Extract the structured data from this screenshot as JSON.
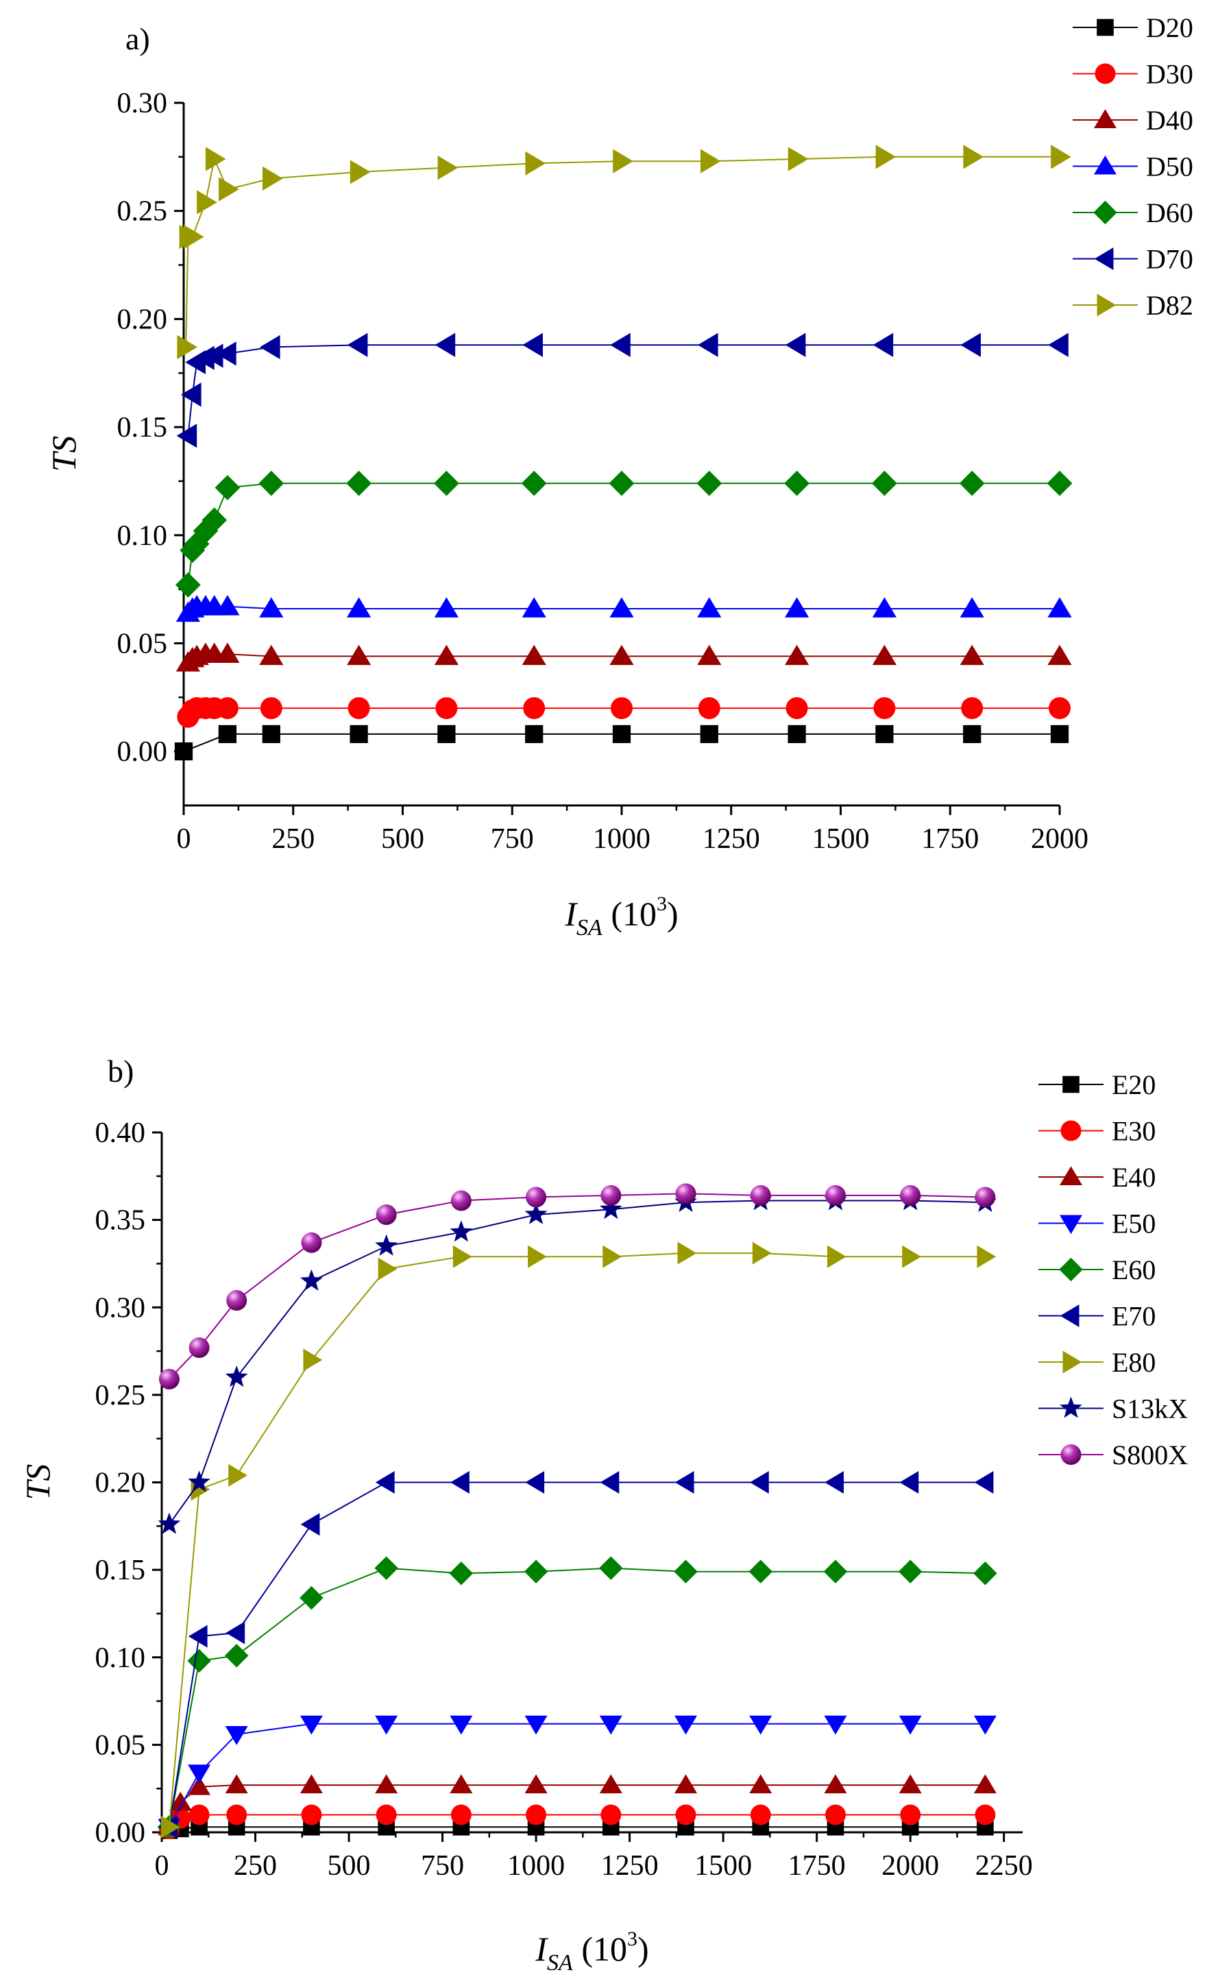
{
  "chart_data": [
    {
      "id": "panel-a",
      "type": "line",
      "panel_label": "a)",
      "xlabel_main": "I",
      "xlabel_sub": "SA",
      "xlabel_unit_open": " (10",
      "xlabel_unit_exp": "3",
      "xlabel_unit_close": ")",
      "ylabel": "TS",
      "xlim": [
        0,
        2000
      ],
      "ylim": [
        -0.025,
        0.3
      ],
      "xticks": [
        0,
        250,
        500,
        750,
        1000,
        1250,
        1500,
        1750,
        2000
      ],
      "yticks": [
        0.0,
        0.05,
        0.1,
        0.15,
        0.2,
        0.25,
        0.3
      ],
      "xtick_labels": [
        "0",
        "250",
        "500",
        "750",
        "1000",
        "1250",
        "1500",
        "1750",
        "2000"
      ],
      "ytick_labels": [
        "0.00",
        "0.05",
        "0.10",
        "0.15",
        "0.20",
        "0.25",
        "0.30"
      ],
      "legend_position": "top-right-outside",
      "series": [
        {
          "name": "D20",
          "color": "#000000",
          "marker": "square",
          "x": [
            0,
            100,
            200,
            400,
            600,
            800,
            1000,
            1200,
            1400,
            1600,
            1800,
            2000
          ],
          "y": [
            0.0,
            0.008,
            0.008,
            0.008,
            0.008,
            0.008,
            0.008,
            0.008,
            0.008,
            0.008,
            0.008,
            0.008
          ]
        },
        {
          "name": "D30",
          "color": "#ff0000",
          "marker": "circle",
          "x": [
            10,
            20,
            30,
            50,
            70,
            100,
            200,
            400,
            600,
            800,
            1000,
            1200,
            1400,
            1600,
            1800,
            2000
          ],
          "y": [
            0.016,
            0.019,
            0.02,
            0.02,
            0.02,
            0.02,
            0.02,
            0.02,
            0.02,
            0.02,
            0.02,
            0.02,
            0.02,
            0.02,
            0.02,
            0.02
          ]
        },
        {
          "name": "D40",
          "color": "#990000",
          "marker": "triangle-up",
          "x": [
            10,
            20,
            30,
            50,
            70,
            100,
            200,
            400,
            600,
            800,
            1000,
            1200,
            1400,
            1600,
            1800,
            2000
          ],
          "y": [
            0.041,
            0.043,
            0.044,
            0.045,
            0.045,
            0.045,
            0.044,
            0.044,
            0.044,
            0.044,
            0.044,
            0.044,
            0.044,
            0.044,
            0.044,
            0.044
          ]
        },
        {
          "name": "D50",
          "color": "#0000ff",
          "marker": "triangle-up",
          "x": [
            10,
            20,
            30,
            50,
            70,
            100,
            200,
            400,
            600,
            800,
            1000,
            1200,
            1400,
            1600,
            1800,
            2000
          ],
          "y": [
            0.064,
            0.066,
            0.067,
            0.067,
            0.067,
            0.067,
            0.066,
            0.066,
            0.066,
            0.066,
            0.066,
            0.066,
            0.066,
            0.066,
            0.066,
            0.066
          ]
        },
        {
          "name": "D60",
          "color": "#008000",
          "marker": "diamond",
          "x": [
            10,
            20,
            30,
            50,
            70,
            100,
            200,
            400,
            600,
            800,
            1000,
            1200,
            1400,
            1600,
            1800,
            2000
          ],
          "y": [
            0.077,
            0.093,
            0.096,
            0.102,
            0.107,
            0.122,
            0.124,
            0.124,
            0.124,
            0.124,
            0.124,
            0.124,
            0.124,
            0.124,
            0.124,
            0.124
          ]
        },
        {
          "name": "D70",
          "color": "#000099",
          "marker": "triangle-left",
          "x": [
            10,
            20,
            30,
            50,
            70,
            100,
            200,
            400,
            600,
            800,
            1000,
            1200,
            1400,
            1600,
            1800,
            2000
          ],
          "y": [
            0.146,
            0.165,
            0.18,
            0.182,
            0.183,
            0.184,
            0.187,
            0.188,
            0.188,
            0.188,
            0.188,
            0.188,
            0.188,
            0.188,
            0.188,
            0.188
          ]
        },
        {
          "name": "D82",
          "color": "#999900",
          "marker": "triangle-right",
          "x": [
            5,
            10,
            20,
            50,
            70,
            100,
            200,
            400,
            600,
            800,
            1000,
            1200,
            1400,
            1600,
            1800,
            2000
          ],
          "y": [
            0.187,
            0.238,
            0.238,
            0.254,
            0.274,
            0.26,
            0.265,
            0.268,
            0.27,
            0.272,
            0.273,
            0.273,
            0.274,
            0.275,
            0.275,
            0.275
          ]
        }
      ]
    },
    {
      "id": "panel-b",
      "type": "line",
      "panel_label": "b)",
      "xlabel_main": "I",
      "xlabel_sub": "SA",
      "xlabel_unit_open": " (10",
      "xlabel_unit_exp": "3",
      "xlabel_unit_close": ")",
      "ylabel": "TS",
      "xlim": [
        0,
        2300
      ],
      "ylim": [
        0,
        0.4
      ],
      "xticks": [
        0,
        250,
        500,
        750,
        1000,
        1250,
        1500,
        1750,
        2000,
        2250
      ],
      "yticks": [
        0.0,
        0.05,
        0.1,
        0.15,
        0.2,
        0.25,
        0.3,
        0.35,
        0.4
      ],
      "xtick_labels": [
        "0",
        "250",
        "500",
        "750",
        "1000",
        "1250",
        "1500",
        "1750",
        "2000",
        "2250"
      ],
      "ytick_labels": [
        "0.00",
        "0.05",
        "0.10",
        "0.15",
        "0.20",
        "0.25",
        "0.30",
        "0.35",
        "0.40"
      ],
      "legend_position": "top-right-outside",
      "series": [
        {
          "name": "E20",
          "color": "#000000",
          "marker": "square",
          "x": [
            20,
            50,
            100,
            200,
            400,
            600,
            800,
            1000,
            1200,
            1400,
            1600,
            1800,
            2000,
            2200
          ],
          "y": [
            0.001,
            0.002,
            0.003,
            0.003,
            0.003,
            0.003,
            0.003,
            0.003,
            0.003,
            0.003,
            0.003,
            0.003,
            0.003,
            0.003
          ]
        },
        {
          "name": "E30",
          "color": "#ff0000",
          "marker": "circle",
          "x": [
            20,
            50,
            100,
            200,
            400,
            600,
            800,
            1000,
            1200,
            1400,
            1600,
            1800,
            2000,
            2200
          ],
          "y": [
            0.002,
            0.008,
            0.01,
            0.01,
            0.01,
            0.01,
            0.01,
            0.01,
            0.01,
            0.01,
            0.01,
            0.01,
            0.01,
            0.01
          ]
        },
        {
          "name": "E40",
          "color": "#990000",
          "marker": "triangle-up",
          "x": [
            20,
            50,
            100,
            200,
            400,
            600,
            800,
            1000,
            1200,
            1400,
            1600,
            1800,
            2000,
            2200
          ],
          "y": [
            0.003,
            0.017,
            0.026,
            0.027,
            0.027,
            0.027,
            0.027,
            0.027,
            0.027,
            0.027,
            0.027,
            0.027,
            0.027,
            0.027
          ]
        },
        {
          "name": "E50",
          "color": "#0000ff",
          "marker": "triangle-down",
          "x": [
            20,
            100,
            200,
            400,
            600,
            800,
            1000,
            1200,
            1400,
            1600,
            1800,
            2000,
            2200
          ],
          "y": [
            0.003,
            0.034,
            0.056,
            0.062,
            0.062,
            0.062,
            0.062,
            0.062,
            0.062,
            0.062,
            0.062,
            0.062,
            0.062
          ]
        },
        {
          "name": "E60",
          "color": "#008000",
          "marker": "diamond",
          "x": [
            20,
            100,
            200,
            400,
            600,
            800,
            1000,
            1200,
            1400,
            1600,
            1800,
            2000,
            2200
          ],
          "y": [
            0.003,
            0.098,
            0.101,
            0.134,
            0.151,
            0.148,
            0.149,
            0.151,
            0.149,
            0.149,
            0.149,
            0.149,
            0.148
          ]
        },
        {
          "name": "E70",
          "color": "#000099",
          "marker": "triangle-left",
          "x": [
            20,
            100,
            200,
            400,
            600,
            800,
            1000,
            1200,
            1400,
            1600,
            1800,
            2000,
            2200
          ],
          "y": [
            0.003,
            0.112,
            0.114,
            0.176,
            0.2,
            0.2,
            0.2,
            0.2,
            0.2,
            0.2,
            0.2,
            0.2,
            0.2
          ]
        },
        {
          "name": "E80",
          "color": "#999900",
          "marker": "triangle-right",
          "x": [
            20,
            100,
            200,
            400,
            600,
            800,
            1000,
            1200,
            1400,
            1600,
            1800,
            2000,
            2200
          ],
          "y": [
            0.003,
            0.196,
            0.204,
            0.27,
            0.322,
            0.329,
            0.329,
            0.329,
            0.331,
            0.331,
            0.329,
            0.329,
            0.329
          ]
        },
        {
          "name": "S13kX",
          "color": "#000080",
          "marker": "star",
          "x": [
            20,
            100,
            200,
            400,
            600,
            800,
            1000,
            1200,
            1400,
            1600,
            1800,
            2000,
            2200
          ],
          "y": [
            0.176,
            0.2,
            0.26,
            0.315,
            0.335,
            0.343,
            0.353,
            0.356,
            0.36,
            0.361,
            0.361,
            0.361,
            0.36
          ]
        },
        {
          "name": "S800X",
          "color": "#990099",
          "marker": "sphere",
          "x": [
            20,
            100,
            200,
            400,
            600,
            800,
            1000,
            1200,
            1400,
            1600,
            1800,
            2000,
            2200
          ],
          "y": [
            0.259,
            0.277,
            0.304,
            0.337,
            0.353,
            0.361,
            0.363,
            0.364,
            0.365,
            0.364,
            0.364,
            0.364,
            0.363
          ]
        }
      ]
    }
  ]
}
